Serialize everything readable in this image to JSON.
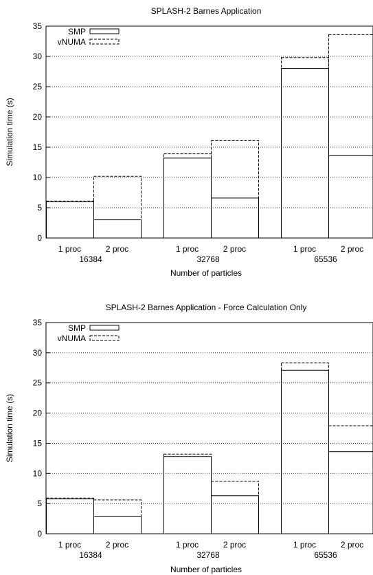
{
  "chart_data": [
    {
      "type": "bar",
      "title": "SPLASH-2 Barnes Application",
      "xlabel": "Number of particles",
      "ylabel": "Simulation time (s)",
      "ylim": [
        0,
        35
      ],
      "yticks": [
        0,
        5,
        10,
        15,
        20,
        25,
        30,
        35
      ],
      "grid": true,
      "legend": "top-left",
      "groups": [
        "16384",
        "32768",
        "65536"
      ],
      "categories": [
        "1 proc",
        "2 proc",
        "1 proc",
        "2 proc",
        "1 proc",
        "2 proc"
      ],
      "series": [
        {
          "name": "SMP",
          "style": "solid",
          "values": [
            6.0,
            3.0,
            13.2,
            6.6,
            28.0,
            13.6
          ]
        },
        {
          "name": "vNUMA",
          "style": "dashed",
          "values": [
            6.1,
            10.2,
            13.9,
            16.1,
            29.8,
            33.6
          ]
        }
      ]
    },
    {
      "type": "bar",
      "title": "SPLASH-2 Barnes Application - Force Calculation Only",
      "xlabel": "Number of particles",
      "ylabel": "Simulation time (s)",
      "ylim": [
        0,
        35
      ],
      "yticks": [
        0,
        5,
        10,
        15,
        20,
        25,
        30,
        35
      ],
      "grid": true,
      "legend": "top-left",
      "groups": [
        "16384",
        "32768",
        "65536"
      ],
      "categories": [
        "1 proc",
        "2 proc",
        "1 proc",
        "2 proc",
        "1 proc",
        "2 proc"
      ],
      "series": [
        {
          "name": "SMP",
          "style": "solid",
          "values": [
            5.8,
            2.9,
            12.8,
            6.3,
            27.1,
            13.6
          ]
        },
        {
          "name": "vNUMA",
          "style": "dashed",
          "values": [
            5.9,
            5.6,
            13.2,
            8.7,
            28.3,
            17.9
          ]
        }
      ]
    }
  ]
}
